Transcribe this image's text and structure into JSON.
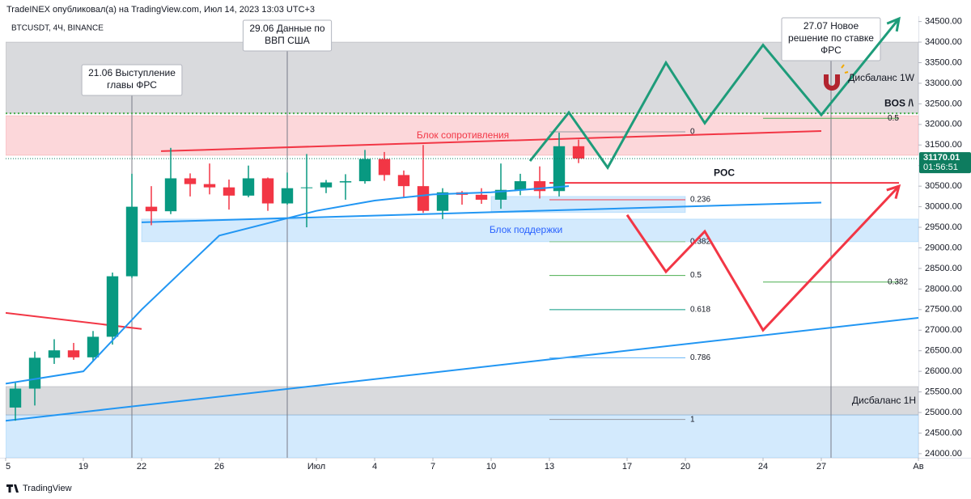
{
  "header": "TradeINEX опубликовал(а) на TradingView.com, Июл 14, 2023 13:03 UTC+3",
  "footer": "TradingView",
  "chart_data": {
    "type": "candlestick",
    "symbol": "BTCUSDT, 4Ч, BINANCE",
    "up_color": "#089981",
    "down_color": "#f23645",
    "x": [
      "2023-06-15",
      "2023-06-16",
      "2023-06-17",
      "2023-06-18",
      "2023-06-19",
      "2023-06-20",
      "2023-06-21",
      "2023-06-22",
      "2023-06-23",
      "2023-06-24",
      "2023-06-25",
      "2023-06-26",
      "2023-06-27",
      "2023-06-28",
      "2023-06-29",
      "2023-06-30",
      "2023-07-01",
      "2023-07-02",
      "2023-07-03",
      "2023-07-04",
      "2023-07-05",
      "2023-07-06",
      "2023-07-07",
      "2023-07-08",
      "2023-07-09",
      "2023-07-10",
      "2023-07-11",
      "2023-07-12",
      "2023-07-13",
      "2023-07-14"
    ],
    "open": [
      25120,
      25580,
      26330,
      26510,
      26340,
      26840,
      28310,
      30000,
      29890,
      30690,
      30550,
      30470,
      30270,
      30690,
      30080,
      30450,
      30470,
      30590,
      30620,
      31160,
      30770,
      30500,
      29900,
      30350,
      30290,
      30170,
      30410,
      30620,
      30380,
      31470
    ],
    "high": [
      25750,
      26480,
      26780,
      26690,
      26980,
      28400,
      30800,
      30500,
      31430,
      30810,
      31050,
      30660,
      31000,
      30710,
      30830,
      31280,
      30650,
      30790,
      31380,
      31330,
      30880,
      31500,
      30450,
      30380,
      30450,
      31050,
      30800,
      30980,
      31800,
      31630
    ],
    "low": [
      24800,
      25170,
      26180,
      26280,
      26250,
      26650,
      28270,
      29550,
      29820,
      30250,
      30300,
      29930,
      30230,
      29900,
      30050,
      29500,
      30330,
      30170,
      30560,
      30630,
      30210,
      29850,
      29700,
      30050,
      30070,
      29950,
      30280,
      30200,
      30250,
      31060
    ],
    "close": [
      25580,
      26330,
      26510,
      26340,
      26840,
      28310,
      30000,
      29890,
      30690,
      30550,
      30470,
      30270,
      30690,
      30080,
      30450,
      30470,
      30590,
      30620,
      31160,
      30770,
      30500,
      29900,
      30350,
      30290,
      30170,
      30410,
      30620,
      30380,
      31470,
      31170
    ],
    "ma": {
      "color": "#2196f3",
      "x": [
        "2023-06-15",
        "2023-06-19",
        "2023-06-22",
        "2023-06-26",
        "2023-07-01",
        "2023-07-04",
        "2023-07-07",
        "2023-07-10",
        "2023-07-14"
      ],
      "values": [
        25700,
        26000,
        27500,
        29300,
        29900,
        30150,
        30300,
        30350,
        30500
      ]
    },
    "xlim": [
      "2023-06-15",
      "2023-08-01"
    ],
    "xticks": [
      {
        "value": "2023-06-15",
        "label": "5"
      },
      {
        "value": "2023-06-19",
        "label": "19"
      },
      {
        "value": "2023-06-22",
        "label": "22"
      },
      {
        "value": "2023-06-26",
        "label": "26"
      },
      {
        "value": "2023-07-01",
        "label": "Июл"
      },
      {
        "value": "2023-07-04",
        "label": "4"
      },
      {
        "value": "2023-07-07",
        "label": "7"
      },
      {
        "value": "2023-07-10",
        "label": "10"
      },
      {
        "value": "2023-07-13",
        "label": "13"
      },
      {
        "value": "2023-07-17",
        "label": "17"
      },
      {
        "value": "2023-07-20",
        "label": "20"
      },
      {
        "value": "2023-07-24",
        "label": "24"
      },
      {
        "value": "2023-07-27",
        "label": "27"
      },
      {
        "value": "2023-08-01",
        "label": "Ав"
      }
    ],
    "ylim": [
      23900,
      34630
    ],
    "yticks": [
      {
        "value": 24000,
        "label": "24000.00"
      },
      {
        "value": 24500,
        "label": "24500.00"
      },
      {
        "value": 25000,
        "label": "25000.00"
      },
      {
        "value": 25500,
        "label": "25500.00"
      },
      {
        "value": 26000,
        "label": "26000.00"
      },
      {
        "value": 26500,
        "label": "26500.00"
      },
      {
        "value": 27000,
        "label": "27000.00"
      },
      {
        "value": 27500,
        "label": "27500.00"
      },
      {
        "value": 28000,
        "label": "28000.00"
      },
      {
        "value": 28500,
        "label": "28500.00"
      },
      {
        "value": 29000,
        "label": "29000.00"
      },
      {
        "value": 29500,
        "label": "29500.00"
      },
      {
        "value": 30000,
        "label": "30000.00"
      },
      {
        "value": 30500,
        "label": "30500.00"
      },
      {
        "value": 31000,
        "label": "31000.00"
      },
      {
        "value": 31500,
        "label": "31500.00"
      },
      {
        "value": 32000,
        "label": "32000.00"
      },
      {
        "value": 32500,
        "label": "32500.00"
      },
      {
        "value": 33000,
        "label": "33000.00"
      },
      {
        "value": 33500,
        "label": "33500.00"
      },
      {
        "value": 34000,
        "label": "34000.00"
      },
      {
        "value": 34500,
        "label": "34500.00"
      }
    ],
    "last_price": 31170.01,
    "countdown": "01:56:51",
    "last_price_color": "#0e7c5f",
    "zones": [
      {
        "x": [
          "2023-06-15",
          "2023-08-01"
        ],
        "y": [
          32270,
          34000
        ],
        "color": "rgba(120,123,134,0.28)",
        "label": "Дисбаланс 1W"
      },
      {
        "x": [
          "2023-06-15",
          "2023-08-01"
        ],
        "y": [
          31250,
          32210
        ],
        "color": "rgba(242,54,69,0.2)",
        "label": "Блок сопротивления"
      },
      {
        "x": [
          "2023-06-22",
          "2023-08-01"
        ],
        "y": [
          29150,
          29700
        ],
        "color": "rgba(33,150,243,0.2)",
        "label": "Блок поддержки"
      },
      {
        "x": [
          "2023-07-10",
          "2023-07-20"
        ],
        "y": [
          29860,
          30250
        ],
        "color": "rgba(33,150,243,0.2)"
      },
      {
        "x": [
          "2023-06-15",
          "2023-08-01"
        ],
        "y": [
          24940,
          25630
        ],
        "color": "rgba(120,123,134,0.28)",
        "label": "Дисбаланс 1H"
      },
      {
        "x": [
          "2023-06-15",
          "2023-08-01"
        ],
        "y": [
          23900,
          24940
        ],
        "color": "rgba(33,150,243,0.2)"
      }
    ],
    "lines": [
      {
        "x": [
          "2023-06-15",
          "2023-06-22"
        ],
        "y": [
          27420,
          27030
        ],
        "color": "#f23645"
      },
      {
        "x": [
          "2023-06-23",
          "2023-07-27"
        ],
        "y": [
          31350,
          31840
        ],
        "color": "#f23645"
      },
      {
        "x": [
          "2023-07-13",
          "2023-07-31"
        ],
        "y": [
          30580,
          30580
        ],
        "color": "#f23645",
        "label": "POC"
      },
      {
        "x": [
          "2023-06-22",
          "2023-07-27"
        ],
        "y": [
          29620,
          30100
        ],
        "color": "#2196f3"
      },
      {
        "x": [
          "2023-06-15",
          "2023-08-01"
        ],
        "y": [
          24800,
          27300
        ],
        "color": "#2196f3"
      },
      {
        "x": [
          "2023-06-15",
          "2023-08-01"
        ],
        "y": [
          32270,
          32270
        ],
        "color": "#4caf50",
        "label": "BOS /\\",
        "style": "dotted"
      }
    ],
    "fibs": [
      {
        "x": [
          "2023-07-13",
          "2023-07-20"
        ],
        "levels": [
          {
            "level": 0,
            "price": 31820,
            "color": "#9598a1"
          },
          {
            "level": 0.236,
            "price": 30170,
            "color": "#f23645"
          },
          {
            "level": 0.382,
            "price": 29150,
            "color": "#81c784"
          },
          {
            "level": 0.5,
            "price": 28330,
            "color": "#4caf50"
          },
          {
            "level": 0.618,
            "price": 27500,
            "color": "#089981"
          },
          {
            "level": 0.786,
            "price": 26330,
            "color": "#64b5f6"
          },
          {
            "level": 1,
            "price": 24830,
            "color": "#9598a1"
          }
        ]
      },
      {
        "x": [
          "2023-07-24",
          "2023-07-31"
        ],
        "levels": [
          {
            "level": 0.5,
            "price": 32150,
            "color": "#4caf50"
          },
          {
            "level": 0.382,
            "price": 28170,
            "color": "#4caf50"
          }
        ]
      }
    ],
    "paths": [
      {
        "x": [
          "2023-07-12",
          "2023-07-14",
          "2023-07-16",
          "2023-07-19",
          "2023-07-21",
          "2023-07-24",
          "2023-07-27",
          "2023-07-31"
        ],
        "y": [
          31110,
          32290,
          30950,
          33500,
          32030,
          33930,
          32230,
          34570
        ],
        "color": "#1e9c7a"
      },
      {
        "x": [
          "2023-07-17",
          "2023-07-19",
          "2023-07-21",
          "2023-07-24",
          "2023-07-31"
        ],
        "y": [
          29800,
          28420,
          29400,
          27000,
          30500
        ],
        "color": "#f23645"
      }
    ],
    "events": [
      {
        "date": "2023-06-21",
        "lines": [
          "21.06 Выступление",
          "главы ФРС"
        ]
      },
      {
        "date": "2023-06-29",
        "lines": [
          "29.06 Данные по",
          "ВВП США"
        ]
      },
      {
        "date": "2023-07-27",
        "lines": [
          "27.07 Новое",
          "решение по ставке",
          "ФРС"
        ]
      }
    ]
  }
}
